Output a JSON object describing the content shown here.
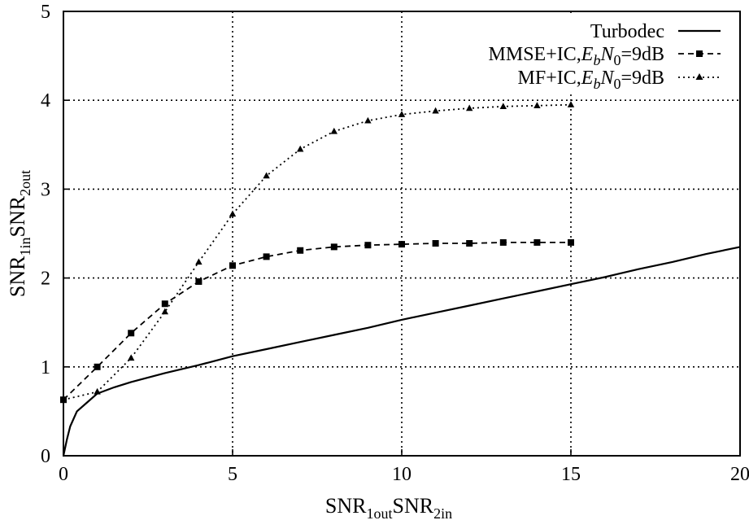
{
  "chart_data": {
    "type": "line",
    "xlabel": {
      "base1": "SNR",
      "sub1": "1out",
      "base2": "SNR",
      "sub2": "2in"
    },
    "ylabel": {
      "base1": "SNR",
      "sub1": "1in",
      "base2": "SNR",
      "sub2": "2out"
    },
    "xlim": [
      0,
      20
    ],
    "ylim": [
      0,
      5
    ],
    "xticks": [
      "0",
      "5",
      "10",
      "15",
      "20"
    ],
    "yticks": [
      "0",
      "1",
      "2",
      "3",
      "4",
      "5"
    ],
    "grid": true,
    "grid_style": "dotted",
    "legend_position": "top-right",
    "series": [
      {
        "id": "turbodec",
        "label": {
          "main": "Turbodec"
        },
        "style": "solid",
        "marker": "none",
        "color": "#000000",
        "x": [
          0,
          0.1,
          0.2,
          0.4,
          0.7,
          1,
          1.5,
          2,
          2.5,
          3,
          4,
          5,
          6,
          7,
          8,
          9,
          10,
          11,
          12,
          13,
          14,
          15,
          16,
          17,
          18,
          19,
          20
        ],
        "y": [
          0,
          0.18,
          0.33,
          0.5,
          0.6,
          0.7,
          0.77,
          0.83,
          0.88,
          0.93,
          1.02,
          1.12,
          1.2,
          1.28,
          1.36,
          1.44,
          1.53,
          1.61,
          1.69,
          1.77,
          1.85,
          1.93,
          2.01,
          2.1,
          2.18,
          2.27,
          2.35
        ]
      },
      {
        "id": "mmse-ic",
        "label": {
          "main": "MMSE+IC,",
          "e": "E",
          "b": "b",
          "n": "N",
          "zero": "0",
          "tail": "=9dB"
        },
        "style": "dashed",
        "marker": "square",
        "color": "#000000",
        "x": [
          0,
          1,
          2,
          3,
          4,
          5,
          6,
          7,
          8,
          9,
          10,
          11,
          12,
          13,
          14,
          15
        ],
        "y": [
          0.63,
          1.0,
          1.38,
          1.71,
          1.96,
          2.14,
          2.24,
          2.31,
          2.35,
          2.37,
          2.38,
          2.39,
          2.39,
          2.4,
          2.4,
          2.4
        ]
      },
      {
        "id": "mf-ic",
        "label": {
          "main": "MF+IC,",
          "e": "E",
          "b": "b",
          "n": "N",
          "zero": "0",
          "tail": "=9dB"
        },
        "style": "dotted",
        "marker": "triangle",
        "color": "#000000",
        "x": [
          0,
          1,
          2,
          3,
          4,
          5,
          6,
          7,
          8,
          9,
          10,
          11,
          12,
          13,
          14,
          15
        ],
        "y": [
          0.63,
          0.72,
          1.1,
          1.62,
          2.18,
          2.72,
          3.15,
          3.45,
          3.65,
          3.77,
          3.84,
          3.88,
          3.91,
          3.93,
          3.94,
          3.95
        ]
      }
    ]
  }
}
